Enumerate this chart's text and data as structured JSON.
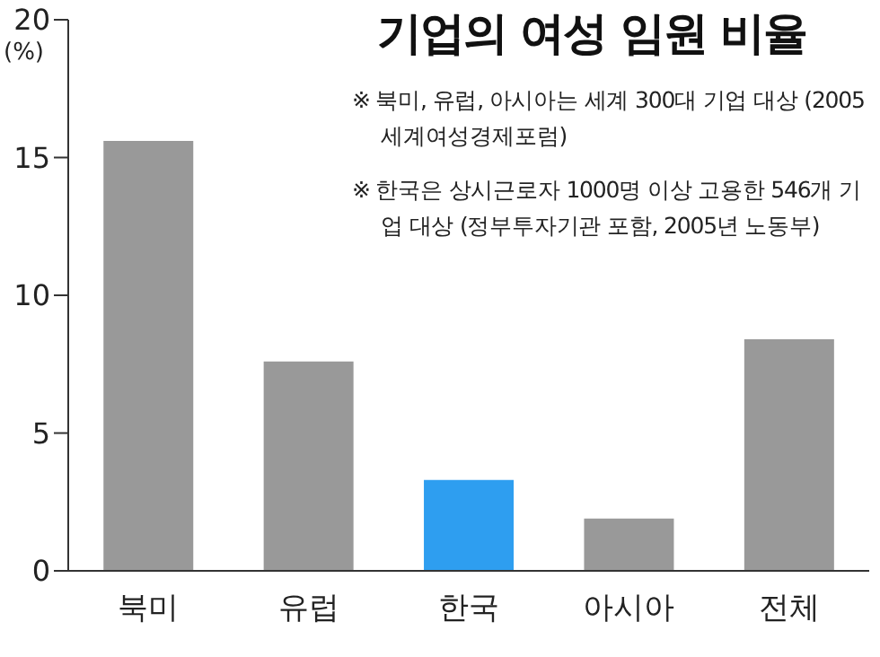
{
  "chart_data": {
    "type": "bar",
    "title": "기업의 여성 임원 비율",
    "ylabel": "(%)",
    "annotations": [
      "※ 북미, 유럽, 아시아는 세계 300대 기업 대상 (2005 세계여성경제포럼)",
      "※ 한국은 상시근로자 1000명 이상 고용한 546개 기업 대상 (정부투자기관 포함, 2005년 노동부)"
    ],
    "categories": [
      "북미",
      "유럽",
      "한국",
      "아시아",
      "전체"
    ],
    "values": [
      15.6,
      7.6,
      3.3,
      1.9,
      8.4
    ],
    "colors": [
      "#999999",
      "#999999",
      "#2e9ef0",
      "#999999",
      "#999999"
    ],
    "ylim": [
      0,
      20
    ],
    "yticks": [
      0,
      5,
      10,
      15,
      20
    ],
    "grid": false,
    "legend": false
  }
}
